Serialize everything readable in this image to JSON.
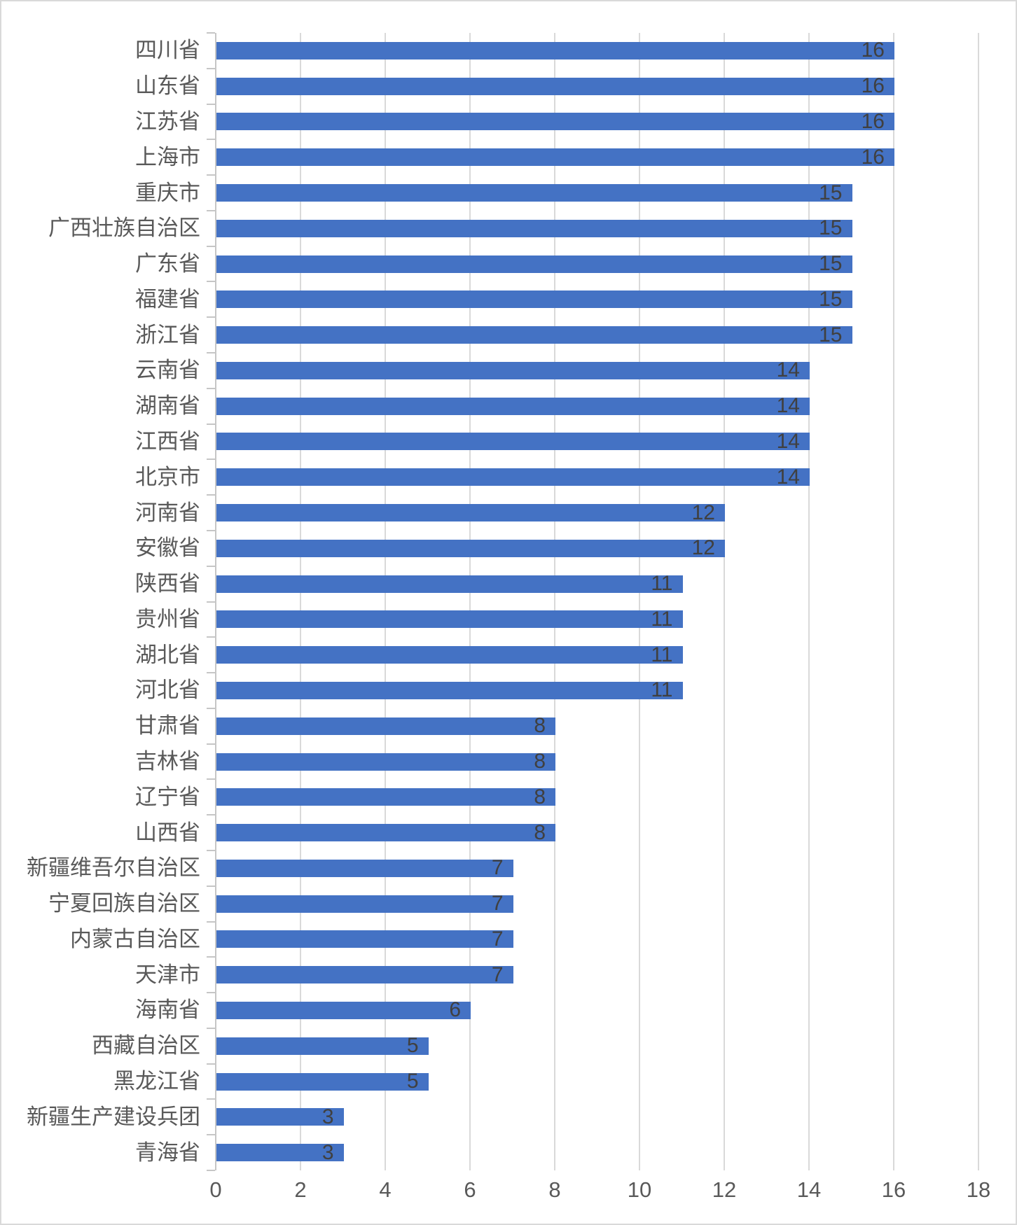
{
  "chart_data": {
    "type": "bar",
    "orientation": "horizontal",
    "title": "",
    "xlabel": "",
    "ylabel": "",
    "categories": [
      "四川省",
      "山东省",
      "江苏省",
      "上海市",
      "重庆市",
      "广西壮族自治区",
      "广东省",
      "福建省",
      "浙江省",
      "云南省",
      "湖南省",
      "江西省",
      "北京市",
      "河南省",
      "安徽省",
      "陕西省",
      "贵州省",
      "湖北省",
      "河北省",
      "甘肃省",
      "吉林省",
      "辽宁省",
      "山西省",
      "新疆维吾尔自治区",
      "宁夏回族自治区",
      "内蒙古自治区",
      "天津市",
      "海南省",
      "西藏自治区",
      "黑龙江省",
      "新疆生产建设兵团",
      "青海省"
    ],
    "values": [
      16,
      16,
      16,
      16,
      15,
      15,
      15,
      15,
      15,
      14,
      14,
      14,
      14,
      12,
      12,
      11,
      11,
      11,
      11,
      8,
      8,
      8,
      8,
      7,
      7,
      7,
      7,
      6,
      5,
      5,
      3,
      3
    ],
    "data_labels_position": "inside-end",
    "xlim": [
      0,
      18
    ],
    "x_ticks": [
      0,
      2,
      4,
      6,
      8,
      10,
      12,
      14,
      16,
      18
    ],
    "grid": true,
    "legend": "none",
    "colors": {
      "bar_fill": "#4472c4",
      "category_label": "#595959",
      "value_label": "#404040",
      "x_tick_label": "#595959",
      "gridline": "#d9d9d9",
      "axis_line": "#c6c6c6",
      "chart_border": "#d9d9d9",
      "background": "#ffffff"
    }
  }
}
